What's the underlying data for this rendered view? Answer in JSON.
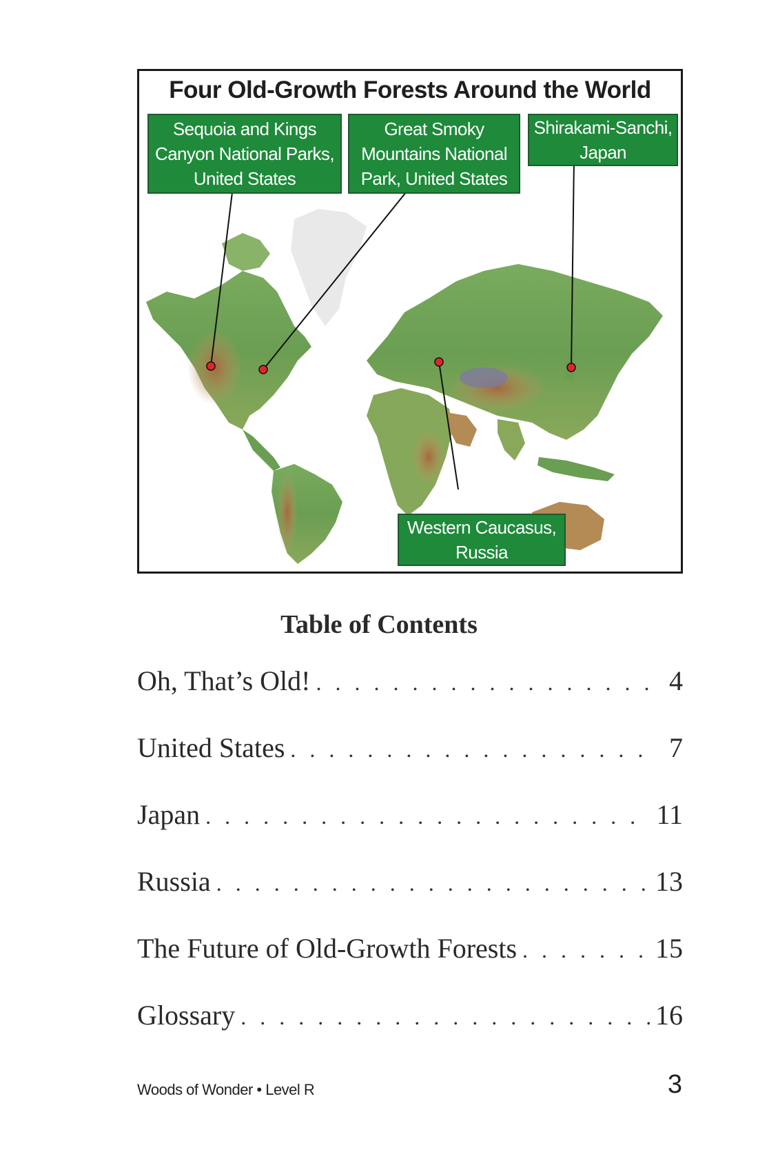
{
  "map": {
    "title": "Four Old-Growth Forests Around the World",
    "labels": {
      "sequoia": [
        "Sequoia and Kings",
        "Canyon National Parks,",
        "United States"
      ],
      "smoky": [
        "Great Smoky",
        "Mountains National",
        "Park, United States"
      ],
      "shirakami": [
        "Shirakami-Sanchi,",
        "Japan"
      ],
      "caucasus": [
        "Western Caucasus,",
        "Russia"
      ]
    },
    "colors": {
      "label_fill": "#1e8a3a",
      "marker": "#e0262b",
      "land_low": "#5f9a4e",
      "land_high": "#b87a4a",
      "ice": "#e8e8e8"
    }
  },
  "toc": {
    "title": "Table of Contents",
    "entries": [
      {
        "title": "Oh, That’s Old!",
        "page": "4"
      },
      {
        "title": "United States",
        "page": "7"
      },
      {
        "title": "Japan",
        "page": "11"
      },
      {
        "title": "Russia",
        "page": "13"
      },
      {
        "title": "The Future of Old-Growth Forests",
        "page": "15"
      },
      {
        "title": "Glossary",
        "page": "16"
      }
    ]
  },
  "footer": {
    "book": "Woods of Wonder • Level R",
    "page_number": "3"
  }
}
